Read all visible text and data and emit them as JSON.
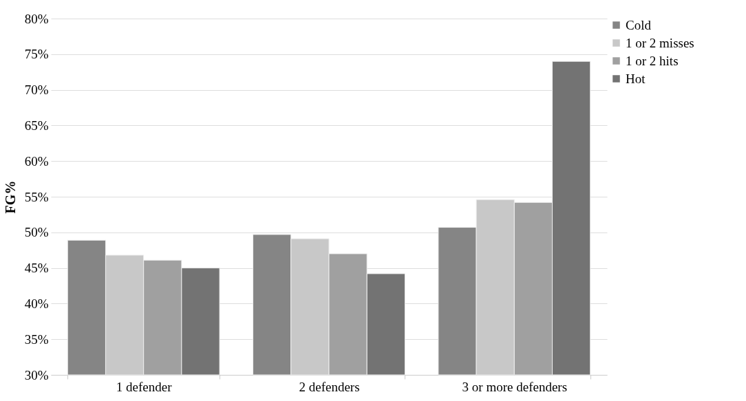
{
  "chart_data": {
    "type": "bar",
    "ylabel": "FG%",
    "categories": [
      "1 defender",
      "2 defenders",
      "3 or more defenders"
    ],
    "series": [
      {
        "name": "Cold",
        "color": "#858585",
        "values": [
          48.9,
          49.7,
          50.7
        ]
      },
      {
        "name": "1 or 2 misses",
        "color": "#c8c8c8",
        "values": [
          46.8,
          49.1,
          54.6
        ]
      },
      {
        "name": "1 or 2 hits",
        "color": "#a0a0a0",
        "values": [
          46.1,
          47.0,
          54.2
        ]
      },
      {
        "name": "Hot",
        "color": "#737373",
        "values": [
          45.0,
          44.2,
          74.0
        ]
      }
    ],
    "ylim": [
      30,
      80
    ],
    "yticks": [
      {
        "value": 30,
        "label": "30%"
      },
      {
        "value": 35,
        "label": "35%"
      },
      {
        "value": 40,
        "label": "40%"
      },
      {
        "value": 45,
        "label": "45%"
      },
      {
        "value": 50,
        "label": "50%"
      },
      {
        "value": 55,
        "label": "55%"
      },
      {
        "value": 60,
        "label": "60%"
      },
      {
        "value": 65,
        "label": "65%"
      },
      {
        "value": 70,
        "label": "70%"
      },
      {
        "value": 75,
        "label": "75%"
      },
      {
        "value": 80,
        "label": "80%"
      }
    ],
    "grid": "y",
    "legend": "right"
  }
}
